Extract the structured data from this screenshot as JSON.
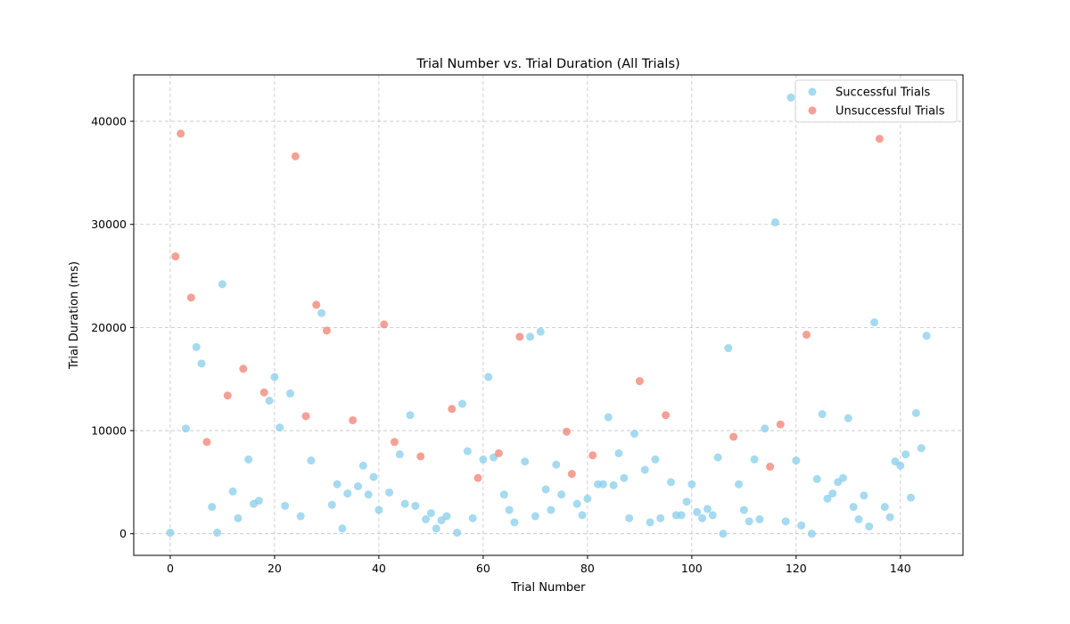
{
  "chart_data": {
    "type": "scatter",
    "title": "Trial Number vs. Trial Duration (All Trials)",
    "xlabel": "Trial Number",
    "ylabel": "Trial Duration (ms)",
    "xlim": [
      -7,
      152
    ],
    "ylim": [
      -2100,
      44500
    ],
    "xticks": [
      0,
      20,
      40,
      60,
      80,
      100,
      120,
      140
    ],
    "yticks": [
      0,
      10000,
      20000,
      30000,
      40000
    ],
    "grid": true,
    "legend_position": "top-right",
    "series": [
      {
        "name": "Successful Trials",
        "color": "#87ceeb",
        "points": [
          [
            0,
            100
          ],
          [
            3,
            10200
          ],
          [
            5,
            18100
          ],
          [
            6,
            16500
          ],
          [
            8,
            2600
          ],
          [
            9,
            100
          ],
          [
            10,
            24200
          ],
          [
            12,
            4100
          ],
          [
            13,
            1500
          ],
          [
            15,
            7200
          ],
          [
            16,
            2900
          ],
          [
            17,
            3200
          ],
          [
            19,
            12900
          ],
          [
            20,
            15200
          ],
          [
            21,
            10300
          ],
          [
            22,
            2700
          ],
          [
            23,
            13600
          ],
          [
            25,
            1700
          ],
          [
            27,
            7100
          ],
          [
            29,
            21400
          ],
          [
            31,
            2800
          ],
          [
            32,
            4800
          ],
          [
            33,
            500
          ],
          [
            34,
            3900
          ],
          [
            36,
            4600
          ],
          [
            37,
            6600
          ],
          [
            38,
            3800
          ],
          [
            39,
            5500
          ],
          [
            40,
            2300
          ],
          [
            42,
            4000
          ],
          [
            44,
            7700
          ],
          [
            45,
            2900
          ],
          [
            46,
            11500
          ],
          [
            47,
            2700
          ],
          [
            49,
            1400
          ],
          [
            50,
            2000
          ],
          [
            51,
            500
          ],
          [
            52,
            1300
          ],
          [
            53,
            1700
          ],
          [
            55,
            100
          ],
          [
            56,
            12600
          ],
          [
            57,
            8000
          ],
          [
            58,
            1500
          ],
          [
            60,
            7200
          ],
          [
            61,
            15200
          ],
          [
            62,
            7400
          ],
          [
            64,
            3800
          ],
          [
            65,
            2300
          ],
          [
            66,
            1100
          ],
          [
            68,
            7000
          ],
          [
            69,
            19100
          ],
          [
            70,
            1700
          ],
          [
            71,
            19600
          ],
          [
            72,
            4300
          ],
          [
            73,
            2300
          ],
          [
            74,
            6700
          ],
          [
            75,
            3800
          ],
          [
            78,
            2900
          ],
          [
            79,
            1800
          ],
          [
            80,
            3400
          ],
          [
            82,
            4800
          ],
          [
            83,
            4800
          ],
          [
            84,
            11300
          ],
          [
            85,
            4700
          ],
          [
            86,
            7800
          ],
          [
            87,
            5400
          ],
          [
            88,
            1500
          ],
          [
            89,
            9700
          ],
          [
            91,
            6200
          ],
          [
            92,
            1100
          ],
          [
            93,
            7200
          ],
          [
            94,
            1500
          ],
          [
            96,
            5000
          ],
          [
            97,
            1800
          ],
          [
            98,
            1800
          ],
          [
            99,
            3100
          ],
          [
            100,
            4800
          ],
          [
            101,
            2100
          ],
          [
            102,
            1500
          ],
          [
            103,
            2400
          ],
          [
            104,
            1800
          ],
          [
            105,
            7400
          ],
          [
            106,
            0
          ],
          [
            107,
            18000
          ],
          [
            109,
            4800
          ],
          [
            110,
            2300
          ],
          [
            111,
            1200
          ],
          [
            112,
            7200
          ],
          [
            113,
            1400
          ],
          [
            114,
            10200
          ],
          [
            116,
            30200
          ],
          [
            118,
            1200
          ],
          [
            119,
            42300
          ],
          [
            120,
            7100
          ],
          [
            121,
            800
          ],
          [
            123,
            0
          ],
          [
            124,
            5300
          ],
          [
            125,
            11600
          ],
          [
            126,
            3400
          ],
          [
            127,
            3900
          ],
          [
            128,
            5000
          ],
          [
            129,
            5400
          ],
          [
            130,
            11200
          ],
          [
            131,
            2600
          ],
          [
            132,
            1400
          ],
          [
            133,
            3700
          ],
          [
            134,
            700
          ],
          [
            135,
            20500
          ],
          [
            137,
            2600
          ],
          [
            138,
            1600
          ],
          [
            139,
            7000
          ],
          [
            140,
            6600
          ],
          [
            141,
            7700
          ],
          [
            142,
            3500
          ],
          [
            143,
            11700
          ],
          [
            144,
            8300
          ],
          [
            145,
            19200
          ]
        ]
      },
      {
        "name": "Unsuccessful Trials",
        "color": "#f08070",
        "points": [
          [
            1,
            26900
          ],
          [
            2,
            38800
          ],
          [
            4,
            22900
          ],
          [
            7,
            8900
          ],
          [
            11,
            13400
          ],
          [
            14,
            16000
          ],
          [
            18,
            13700
          ],
          [
            24,
            36600
          ],
          [
            26,
            11400
          ],
          [
            28,
            22200
          ],
          [
            30,
            19700
          ],
          [
            35,
            11000
          ],
          [
            41,
            20300
          ],
          [
            43,
            8900
          ],
          [
            48,
            7500
          ],
          [
            54,
            12100
          ],
          [
            59,
            5400
          ],
          [
            63,
            7800
          ],
          [
            67,
            19100
          ],
          [
            76,
            9900
          ],
          [
            77,
            5800
          ],
          [
            81,
            7600
          ],
          [
            90,
            14800
          ],
          [
            95,
            11500
          ],
          [
            108,
            9400
          ],
          [
            115,
            6500
          ],
          [
            117,
            10600
          ],
          [
            122,
            19300
          ],
          [
            136,
            38300
          ]
        ]
      }
    ]
  }
}
